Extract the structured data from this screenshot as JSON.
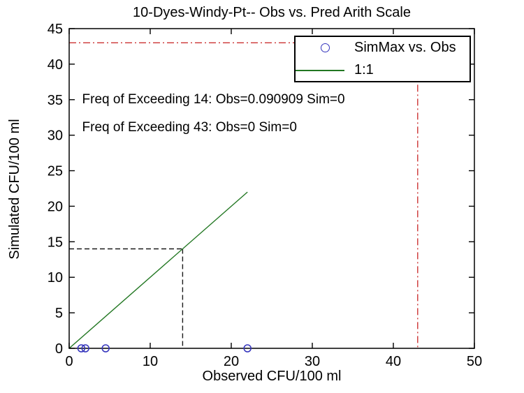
{
  "figure": {
    "background": "#ffffff"
  },
  "chart_data": {
    "type": "scatter",
    "title": "10-Dyes-Windy-Pt-- Obs vs. Pred Arith Scale",
    "xlabel": "Observed CFU/100 ml",
    "ylabel": "Simulated CFU/100 ml",
    "xlim": [
      0,
      50
    ],
    "ylim": [
      0,
      45
    ],
    "xticks": [
      0,
      10,
      20,
      30,
      40,
      50
    ],
    "yticks": [
      0,
      5,
      10,
      15,
      20,
      25,
      30,
      35,
      40,
      45
    ],
    "grid": false,
    "legend_position": "top-right",
    "series": [
      {
        "name": "SimMax vs. Obs",
        "type": "scatter",
        "marker": "circle",
        "color": "#3434bd",
        "points": [
          [
            1.5,
            0
          ],
          [
            2,
            0
          ],
          [
            4.5,
            0
          ],
          [
            22,
            0
          ]
        ]
      },
      {
        "name": "1:1",
        "type": "line",
        "color": "#227722",
        "points": [
          [
            0,
            0
          ],
          [
            22,
            22
          ]
        ]
      }
    ],
    "reference_lines": [
      {
        "name": "exceedance-threshold-14",
        "style": "dashed",
        "color": "#1a1a1a",
        "segments": [
          [
            [
              0,
              14
            ],
            [
              14,
              14
            ]
          ],
          [
            [
              14,
              14
            ],
            [
              14,
              0
            ]
          ]
        ]
      },
      {
        "name": "exceedance-threshold-43",
        "style": "dashdot",
        "color": "#cc3333",
        "segments": [
          [
            [
              0,
              43
            ],
            [
              43,
              43
            ]
          ],
          [
            [
              43,
              43
            ],
            [
              43,
              0
            ]
          ]
        ]
      }
    ],
    "annotations": [
      {
        "text": "Freq of Exceeding 14: Obs=0.090909 Sim=0",
        "x": 1.6,
        "y": 35
      },
      {
        "text": "Freq of Exceeding 43: Obs=0 Sim=0",
        "x": 1.6,
        "y": 31
      }
    ]
  },
  "legend": {
    "items": [
      {
        "label": "SimMax vs. Obs",
        "marker": "circle",
        "color": "#3434bd"
      },
      {
        "label": "1:1",
        "marker": "line",
        "color": "#227722"
      }
    ]
  }
}
